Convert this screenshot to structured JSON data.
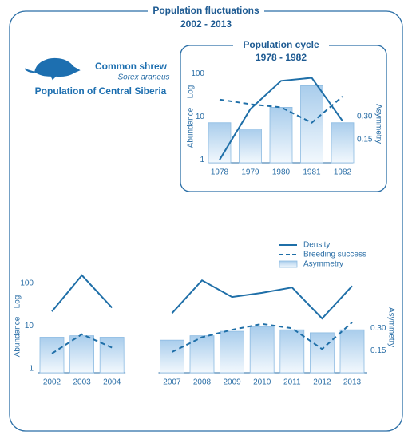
{
  "chart_data": [
    {
      "type": "combo",
      "title": "Population fluctuations",
      "subtitle": "2002 - 2013",
      "annotations": [
        "Common shrew",
        "Sorex araneus",
        "Population of Central Siberia"
      ],
      "categories": [
        "2002",
        "2003",
        "2004",
        null,
        "2007",
        "2008",
        "2009",
        "2010",
        "2011",
        "2012",
        "2013"
      ],
      "ylabel": "Abundance",
      "yunit": "Log",
      "y2label": "Asymmetry",
      "log_y": true,
      "ylim": [
        0.8,
        200
      ],
      "yticks": [
        1,
        10,
        100
      ],
      "y2lim": [
        0,
        0.69
      ],
      "y2ticks": [
        0.15,
        {
          "value": 0.3,
          "label": "0.30"
        }
      ],
      "legend": "upper right",
      "series": [
        {
          "name": "Density",
          "type": "line",
          "dash": false,
          "color": "#1f6fa8",
          "values": [
            22,
            155,
            27,
            null,
            20,
            118,
            48,
            60,
            80,
            15,
            87
          ]
        },
        {
          "name": "Breeding success",
          "type": "line",
          "dash": true,
          "axis": "y2",
          "color": "#1f6fa8",
          "values": [
            0.13,
            0.26,
            0.17,
            null,
            0.14,
            0.24,
            0.29,
            0.33,
            0.3,
            0.16,
            0.34
          ]
        },
        {
          "name": "Asymmetry",
          "type": "bar",
          "axis": "y2",
          "color": "#cfe3f3",
          "values": [
            0.24,
            0.25,
            0.24,
            null,
            0.22,
            0.25,
            0.28,
            0.31,
            0.29,
            0.27,
            0.29
          ]
        }
      ]
    },
    {
      "type": "combo",
      "title": "Population cycle",
      "subtitle": "1978 - 1982",
      "categories": [
        "1978",
        "1979",
        "1980",
        "1981",
        "1982"
      ],
      "ylabel": "Abundance",
      "yunit": "Log",
      "y2label": "Asymmetry",
      "log_y": true,
      "ylim": [
        0.85,
        120
      ],
      "yticks": [
        1,
        10,
        100
      ],
      "y2lim": [
        0,
        0.6
      ],
      "y2ticks": [
        0.15,
        {
          "value": 0.3,
          "label": "0.30"
        }
      ],
      "series": [
        {
          "type": "line",
          "dash": false,
          "color": "#1f6fa8",
          "values": [
            1,
            15,
            68,
            80,
            8
          ]
        },
        {
          "type": "line",
          "dash": true,
          "axis": "y2",
          "color": "#1f6fa8",
          "values": [
            0.41,
            0.38,
            0.36,
            0.26,
            0.43
          ]
        },
        {
          "type": "bar",
          "axis": "y2",
          "color": "#cfe3f3",
          "values": [
            0.26,
            0.22,
            0.36,
            0.5,
            0.26
          ]
        }
      ]
    }
  ]
}
